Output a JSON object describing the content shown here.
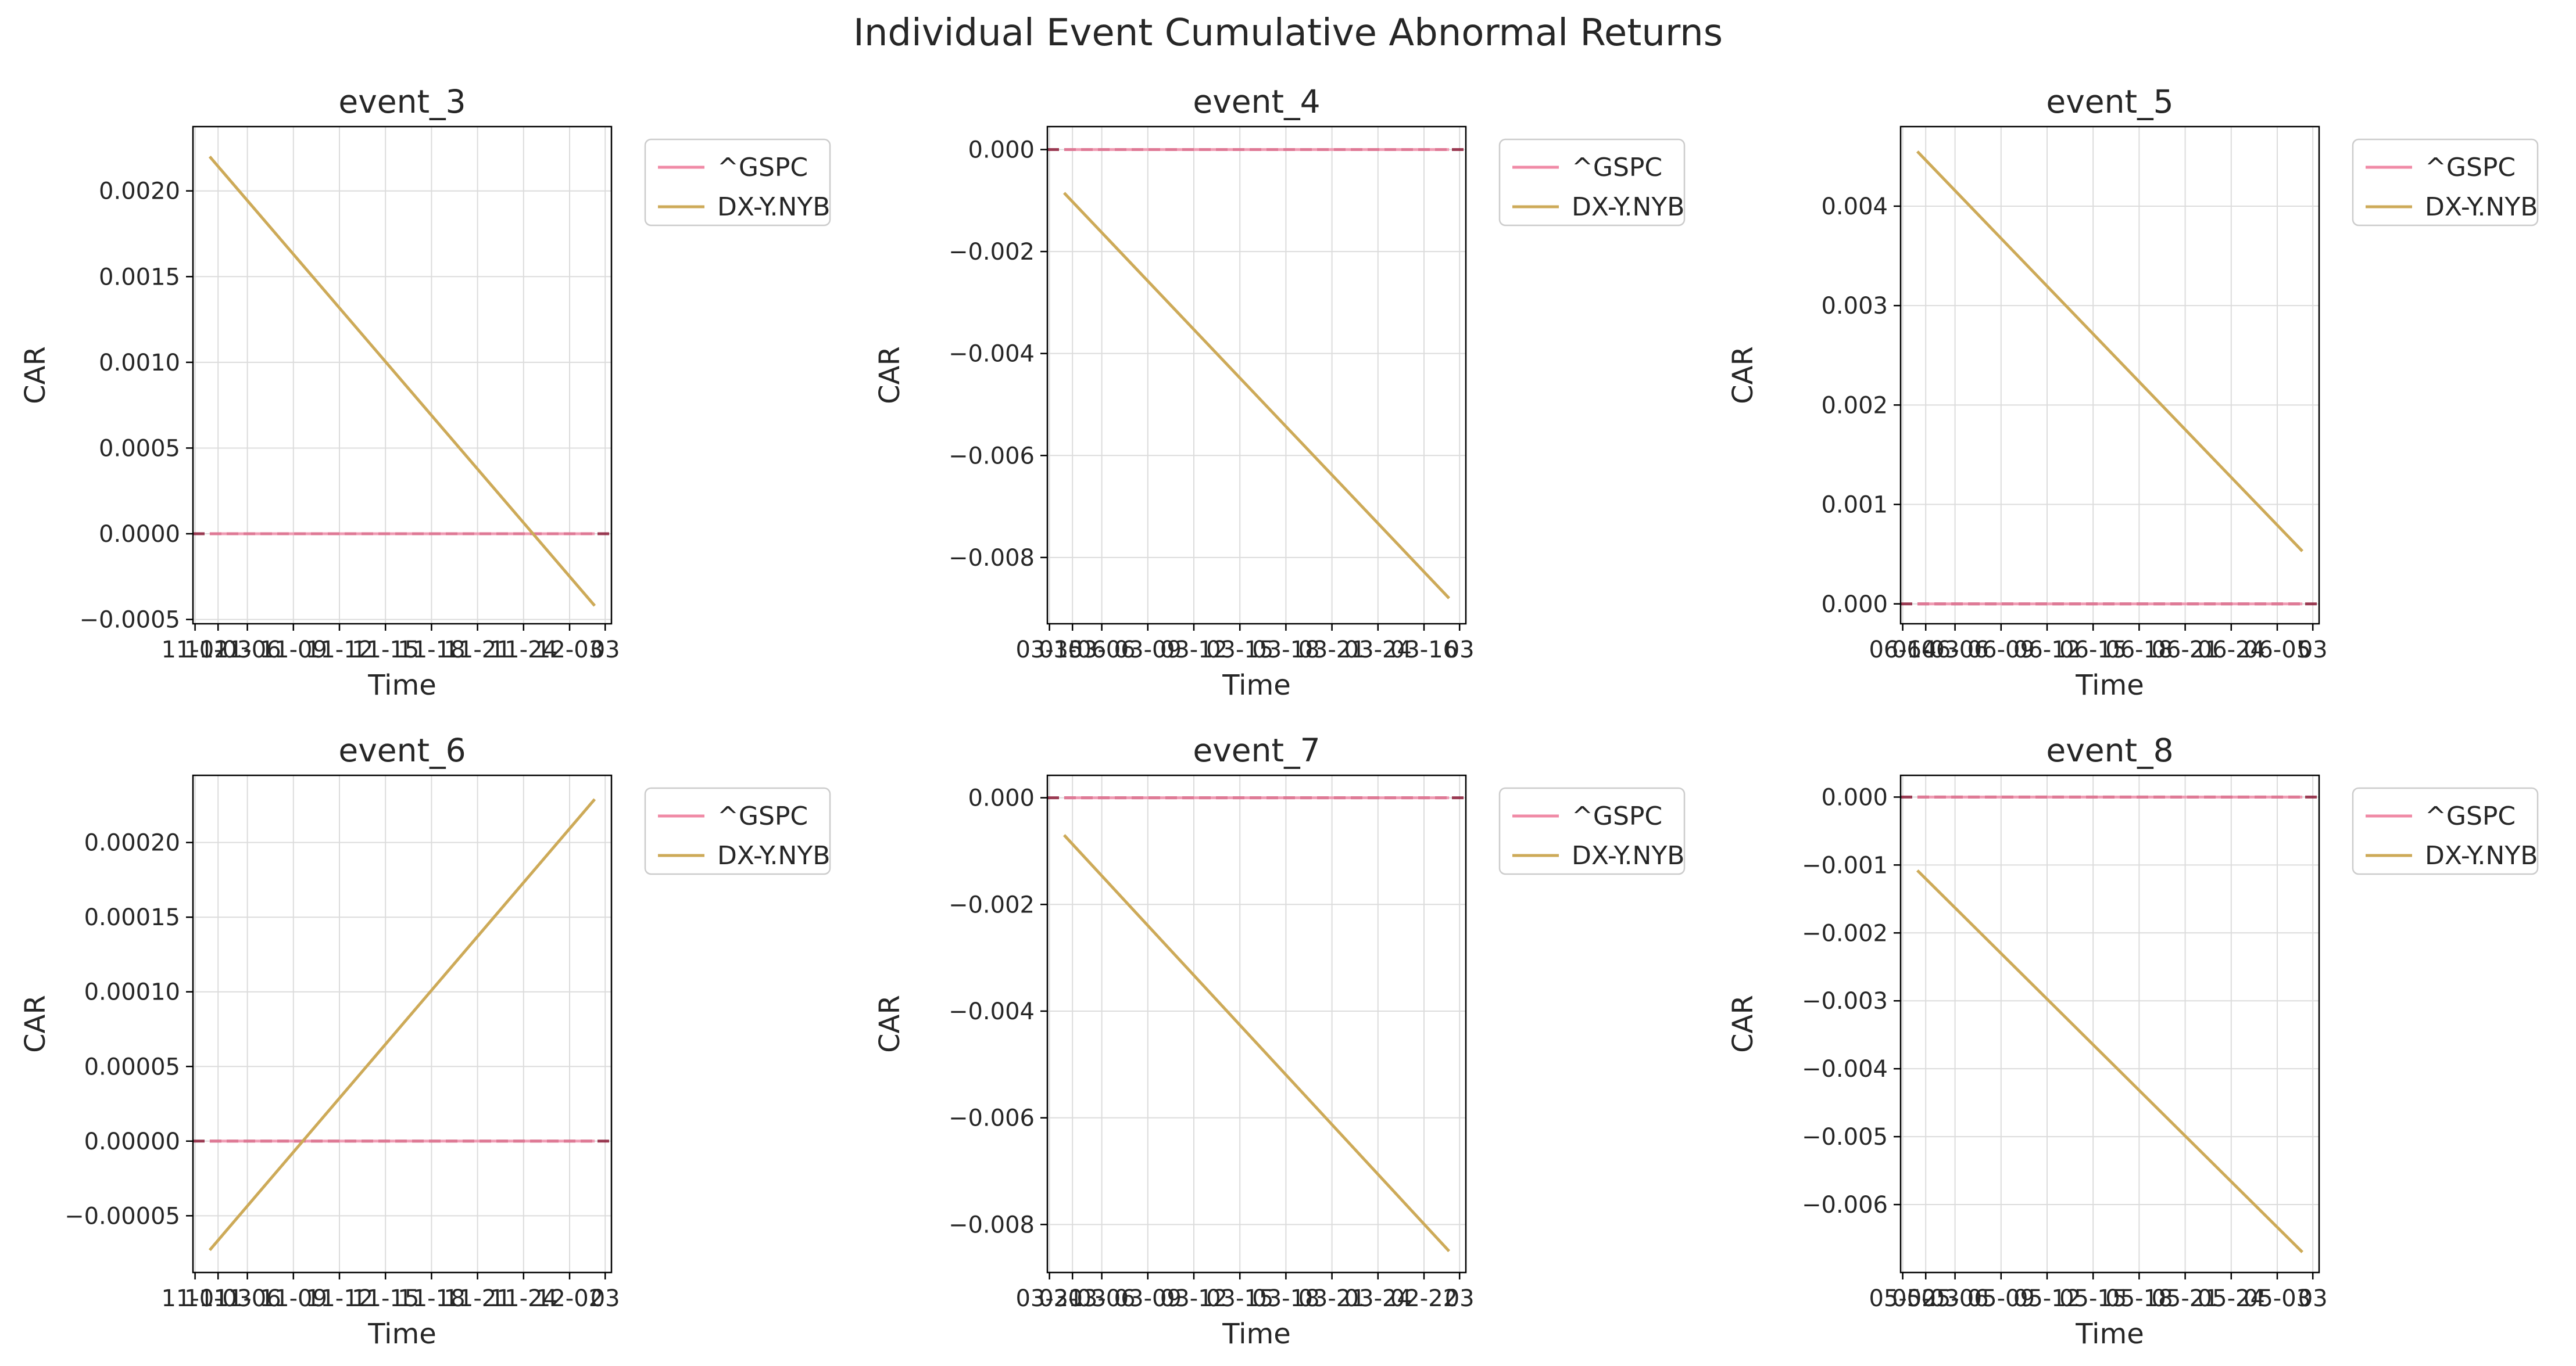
{
  "figure": {
    "title": "Individual Event Cumulative Abnormal Returns"
  },
  "colors": {
    "gspc": "#f08aa6",
    "dxy": "#cdaa58",
    "zero_line": "#800020",
    "grid": "#dcdcdc"
  },
  "chart_data": [
    {
      "type": "line",
      "title": "event_3",
      "xlabel": "Time",
      "ylabel": "CAR",
      "ylim": [
        -0.000525,
        0.002375
      ],
      "yticks": [
        "0.0020",
        "0.0015",
        "0.0010",
        "0.0005",
        "0.0000",
        "−0.0005"
      ],
      "ytick_values": [
        0.002,
        0.0015,
        0.001,
        0.0005,
        0.0,
        -0.0005
      ],
      "xticks": [
        "11-02",
        "11-03",
        "11-06",
        "11-09",
        "11-12",
        "11-15",
        "11-18",
        "11-21",
        "11-24",
        "12-03",
        "03"
      ],
      "x_range": [
        0,
        1
      ],
      "legend": "outside-right",
      "grid": true,
      "zero_line": true,
      "series": [
        {
          "name": "^GSPC",
          "x": [
            0.04,
            0.96
          ],
          "values": [
            0.0,
            0.0
          ]
        },
        {
          "name": "DX-Y.NYB",
          "x": [
            0.04,
            0.96
          ],
          "values": [
            0.0022,
            -0.00042
          ]
        }
      ]
    },
    {
      "type": "line",
      "title": "event_4",
      "xlabel": "Time",
      "ylabel": "CAR",
      "ylim": [
        -0.0093,
        0.00045
      ],
      "yticks": [
        "0.000",
        "−0.002",
        "−0.004",
        "−0.006",
        "−0.008"
      ],
      "ytick_values": [
        0.0,
        -0.002,
        -0.004,
        -0.006,
        -0.008
      ],
      "xticks": [
        "03-15",
        "03-06",
        "03-06",
        "03-09",
        "03-12",
        "03-15",
        "03-18",
        "03-21",
        "03-24",
        "03-16",
        "03"
      ],
      "x_range": [
        0,
        1
      ],
      "legend": "outside-right",
      "grid": true,
      "zero_line": true,
      "series": [
        {
          "name": "^GSPC",
          "x": [
            0.04,
            0.96
          ],
          "values": [
            0.0,
            0.0
          ]
        },
        {
          "name": "DX-Y.NYB",
          "x": [
            0.04,
            0.96
          ],
          "values": [
            -0.00085,
            -0.0088
          ]
        }
      ]
    },
    {
      "type": "line",
      "title": "event_5",
      "xlabel": "Time",
      "ylabel": "CAR",
      "ylim": [
        -0.0002,
        0.0048
      ],
      "yticks": [
        "0.004",
        "0.003",
        "0.002",
        "0.001",
        "0.000"
      ],
      "ytick_values": [
        0.004,
        0.003,
        0.002,
        0.001,
        0.0
      ],
      "xticks": [
        "06-14",
        "06-03",
        "06-06",
        "06-09",
        "06-12",
        "06-15",
        "06-18",
        "06-21",
        "06-24",
        "06-05",
        "03"
      ],
      "x_range": [
        0,
        1
      ],
      "legend": "outside-right",
      "grid": true,
      "zero_line": true,
      "series": [
        {
          "name": "^GSPC",
          "x": [
            0.04,
            0.96
          ],
          "values": [
            0.0,
            0.0
          ]
        },
        {
          "name": "DX-Y.NYB",
          "x": [
            0.04,
            0.96
          ],
          "values": [
            0.00455,
            0.00053
          ]
        }
      ]
    },
    {
      "type": "line",
      "title": "event_6",
      "xlabel": "Time",
      "ylabel": "CAR",
      "ylim": [
        -8.8e-05,
        0.000245
      ],
      "yticks": [
        "0.00020",
        "0.00015",
        "0.00010",
        "0.00005",
        "0.00000",
        "−0.00005"
      ],
      "ytick_values": [
        0.0002,
        0.00015,
        0.0001,
        5e-05,
        0.0,
        -5e-05
      ],
      "xticks": [
        "11-01",
        "11-03",
        "11-06",
        "11-09",
        "11-12",
        "11-15",
        "11-18",
        "11-21",
        "11-24",
        "12-02",
        "03"
      ],
      "x_range": [
        0,
        1
      ],
      "legend": "outside-right",
      "grid": true,
      "zero_line": true,
      "series": [
        {
          "name": "^GSPC",
          "x": [
            0.04,
            0.96
          ],
          "values": [
            0.0,
            0.0
          ]
        },
        {
          "name": "DX-Y.NYB",
          "x": [
            0.04,
            0.96
          ],
          "values": [
            -7.3e-05,
            0.000229
          ]
        }
      ]
    },
    {
      "type": "line",
      "title": "event_7",
      "xlabel": "Time",
      "ylabel": "CAR",
      "ylim": [
        -0.0089,
        0.00042
      ],
      "yticks": [
        "0.000",
        "−0.002",
        "−0.004",
        "−0.006",
        "−0.008"
      ],
      "ytick_values": [
        0.0,
        -0.002,
        -0.004,
        -0.006,
        -0.008
      ],
      "xticks": [
        "03-21",
        "03-03",
        "03-06",
        "03-09",
        "03-12",
        "03-15",
        "03-18",
        "03-21",
        "03-24",
        "02-22",
        "03"
      ],
      "x_range": [
        0,
        1
      ],
      "legend": "outside-right",
      "grid": true,
      "zero_line": true,
      "series": [
        {
          "name": "^GSPC",
          "x": [
            0.04,
            0.96
          ],
          "values": [
            0.0,
            0.0
          ]
        },
        {
          "name": "DX-Y.NYB",
          "x": [
            0.04,
            0.96
          ],
          "values": [
            -0.0007,
            -0.0085
          ]
        }
      ]
    },
    {
      "type": "line",
      "title": "event_8",
      "xlabel": "Time",
      "ylabel": "CAR",
      "ylim": [
        -0.007,
        0.00032
      ],
      "yticks": [
        "0.000",
        "−0.001",
        "−0.002",
        "−0.003",
        "−0.004",
        "−0.005",
        "−0.006"
      ],
      "ytick_values": [
        0.0,
        -0.001,
        -0.002,
        -0.003,
        -0.004,
        -0.005,
        -0.006
      ],
      "xticks": [
        "05-02",
        "05-03",
        "05-06",
        "05-09",
        "05-12",
        "05-15",
        "05-18",
        "05-21",
        "05-24",
        "05-03",
        "03"
      ],
      "x_range": [
        0,
        1
      ],
      "legend": "outside-right",
      "grid": true,
      "zero_line": true,
      "series": [
        {
          "name": "^GSPC",
          "x": [
            0.04,
            0.96
          ],
          "values": [
            0.0,
            0.0
          ]
        },
        {
          "name": "DX-Y.NYB",
          "x": [
            0.04,
            0.96
          ],
          "values": [
            -0.00108,
            -0.0067
          ]
        }
      ]
    }
  ]
}
